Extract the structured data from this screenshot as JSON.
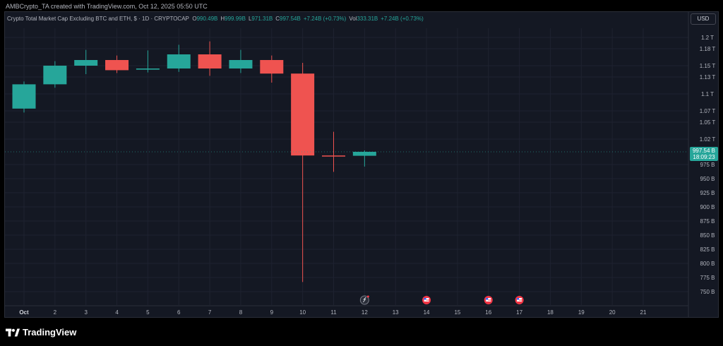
{
  "header": {
    "attribution": "AMBCrypto_TA created with TradingView.com, Oct 12, 2025 05:50 UTC"
  },
  "legend": {
    "symbol": "Crypto Total Market Cap Excluding BTC and ETH, $ · 1D · CRYPTOCAP",
    "o_label": "O",
    "o_value": "990.49B",
    "h_label": "H",
    "h_value": "999.99B",
    "l_label": "L",
    "l_value": "971.31B",
    "c_label": "C",
    "c_value": "997.54B",
    "change": "+7.24B (+0.73%)",
    "vol_label": "Vol",
    "vol_value": "333.31B",
    "vol_change": "+7.24B (+0.73%)"
  },
  "toolbar": {
    "currency": "USD"
  },
  "footer": {
    "brand": "TradingView"
  },
  "colors": {
    "up": "#26a69a",
    "down": "#ef5350",
    "background": "#141823",
    "grid": "#1e2230",
    "axis_text": "#b2b5be",
    "price_tag": "#26a69a",
    "event_red": "#f23645"
  },
  "chart_data": {
    "type": "candlestick",
    "title": "Crypto Total Market Cap Excluding BTC and ETH, $ · 1D · CRYPTOCAP",
    "x_ticks": [
      "Oct",
      "2",
      "3",
      "4",
      "5",
      "6",
      "7",
      "8",
      "9",
      "10",
      "11",
      "12",
      "13",
      "14",
      "15",
      "16",
      "17",
      "18",
      "19",
      "20",
      "21"
    ],
    "y_ticks": [
      "1.2 T",
      "1.18 T",
      "1.15 T",
      "1.13 T",
      "1.1 T",
      "1.07 T",
      "1.05 T",
      "1.02 T",
      "975 B",
      "950 B",
      "925 B",
      "900 B",
      "875 B",
      "850 B",
      "825 B",
      "800 B",
      "775 B",
      "750 B"
    ],
    "y_tick_values": [
      1200,
      1180,
      1150,
      1130,
      1100,
      1070,
      1050,
      1020,
      975,
      950,
      925,
      900,
      875,
      850,
      825,
      800,
      775,
      750
    ],
    "ylim": [
      737,
      1218
    ],
    "unit": "B",
    "candles": [
      {
        "x": "Oct",
        "open": 1074,
        "high": 1122,
        "low": 1067,
        "close": 1117
      },
      {
        "x": "2",
        "open": 1117,
        "high": 1158,
        "low": 1111,
        "close": 1150
      },
      {
        "x": "3",
        "open": 1150,
        "high": 1178,
        "low": 1135,
        "close": 1160
      },
      {
        "x": "4",
        "open": 1160,
        "high": 1168,
        "low": 1137,
        "close": 1142
      },
      {
        "x": "5",
        "open": 1143,
        "high": 1177,
        "low": 1138,
        "close": 1145
      },
      {
        "x": "6",
        "open": 1145,
        "high": 1187,
        "low": 1139,
        "close": 1170
      },
      {
        "x": "7",
        "open": 1170,
        "high": 1193,
        "low": 1132,
        "close": 1145
      },
      {
        "x": "8",
        "open": 1145,
        "high": 1178,
        "low": 1137,
        "close": 1160
      },
      {
        "x": "9",
        "open": 1160,
        "high": 1168,
        "low": 1120,
        "close": 1136
      },
      {
        "x": "10",
        "open": 1136,
        "high": 1155,
        "low": 767,
        "close": 991
      },
      {
        "x": "11",
        "open": 991,
        "high": 1033,
        "low": 962,
        "close": 990
      },
      {
        "x": "12",
        "open": 990.49,
        "high": 999.99,
        "low": 971.31,
        "close": 997.54
      }
    ],
    "last_price": {
      "label": "997.54 B",
      "countdown": "18:09:23",
      "value": 997.54
    },
    "events": [
      {
        "x": "12",
        "icon": "crypto-event-icon"
      },
      {
        "x": "14",
        "icon": "us-flag-icon"
      },
      {
        "x": "16",
        "icon": "us-flag-icon"
      },
      {
        "x": "17",
        "icon": "us-flag-icon"
      }
    ]
  }
}
